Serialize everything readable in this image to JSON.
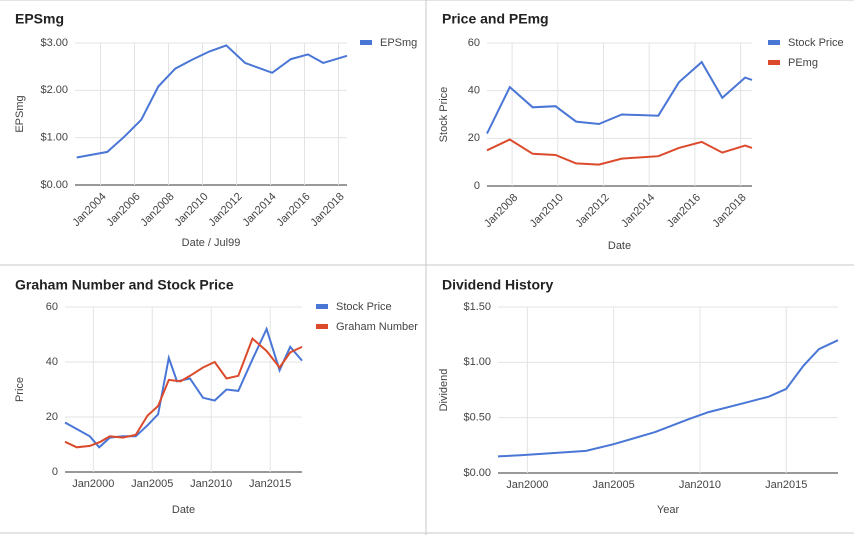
{
  "chart_data": [
    {
      "type": "line",
      "title": "EPSmg",
      "x_label": "Date / Jul99",
      "y_label": "EPSmg",
      "legend": "right",
      "grid": true,
      "xlim": [
        2002.5,
        2018.5
      ],
      "xticks": [
        {
          "value": 2004,
          "label": "Jan2004"
        },
        {
          "value": 2006,
          "label": "Jan2006"
        },
        {
          "value": 2008,
          "label": "Jan2008"
        },
        {
          "value": 2010,
          "label": "Jan2010"
        },
        {
          "value": 2012,
          "label": "Jan2012"
        },
        {
          "value": 2014,
          "label": "Jan2014"
        },
        {
          "value": 2016,
          "label": "Jan2016"
        },
        {
          "value": 2018,
          "label": "Jan2018"
        }
      ],
      "ylim": [
        0,
        3
      ],
      "yticks": [
        {
          "value": 0,
          "label": "$0.00"
        },
        {
          "value": 1,
          "label": "$1.00"
        },
        {
          "value": 2,
          "label": "$2.00"
        },
        {
          "value": 3,
          "label": "$3.00"
        }
      ],
      "series": [
        {
          "name": "EPSmg",
          "color": "#4a76d6",
          "x": [
            2002.6,
            2004.4,
            2005.4,
            2006.4,
            2007.4,
            2008.4,
            2009.4,
            2010.4,
            2011.4,
            2012.5,
            2014.1,
            2015.2,
            2016.2,
            2017.1,
            2018.5
          ],
          "values": [
            0.58,
            0.7,
            1.02,
            1.38,
            2.08,
            2.46,
            2.65,
            2.82,
            2.95,
            2.58,
            2.37,
            2.66,
            2.76,
            2.58,
            2.73
          ]
        }
      ]
    },
    {
      "type": "line",
      "title": "Price and PEmg",
      "x_label": "Date",
      "y_label": "Stock Price",
      "legend": "right",
      "grid": true,
      "xlim": [
        2006.9,
        2018.5
      ],
      "xticks": [
        {
          "value": 2008,
          "label": "Jan2008"
        },
        {
          "value": 2010,
          "label": "Jan2010"
        },
        {
          "value": 2012,
          "label": "Jan2012"
        },
        {
          "value": 2014,
          "label": "Jan2014"
        },
        {
          "value": 2016,
          "label": "Jan2016"
        },
        {
          "value": 2018,
          "label": "Jan2018"
        }
      ],
      "ylim": [
        0,
        60
      ],
      "yticks": [
        0,
        20,
        40,
        60
      ],
      "series": [
        {
          "name": "Stock Price",
          "color": "#4a76d6",
          "x": [
            2006.9,
            2007.9,
            2008.9,
            2009.9,
            2010.8,
            2011.8,
            2012.8,
            2014.4,
            2015.3,
            2016.3,
            2017.2,
            2018.2,
            2018.5
          ],
          "values": [
            22,
            41.5,
            33,
            33.5,
            27,
            26,
            30,
            29.5,
            43.5,
            52,
            37,
            45.5,
            44.5
          ]
        },
        {
          "name": "PEmg",
          "color": "#dc4a2c",
          "x": [
            2006.9,
            2007.9,
            2008.9,
            2009.9,
            2010.8,
            2011.8,
            2012.8,
            2014.4,
            2015.3,
            2016.3,
            2017.2,
            2018.2,
            2018.5
          ],
          "values": [
            15,
            19.5,
            13.5,
            13,
            9.5,
            9,
            11.5,
            12.5,
            16,
            18.5,
            14,
            17,
            16
          ]
        }
      ]
    },
    {
      "type": "line",
      "title": "Graham Number and Stock Price",
      "x_label": "Date",
      "y_label": "Price",
      "legend": "right",
      "grid": true,
      "xlim": [
        1997.6,
        2017.7
      ],
      "xticks": [
        {
          "value": 2000,
          "label": "Jan2000"
        },
        {
          "value": 2005,
          "label": "Jan2005"
        },
        {
          "value": 2010,
          "label": "Jan2010"
        },
        {
          "value": 2015,
          "label": "Jan2015"
        }
      ],
      "ylim": [
        0,
        60
      ],
      "yticks": [
        0,
        20,
        40,
        60
      ],
      "series": [
        {
          "name": "Stock Price",
          "color": "#4a76d6",
          "x": [
            1997.6,
            1999.7,
            2000.5,
            2001.4,
            2002.5,
            2003.6,
            2004.6,
            2005.5,
            2006.4,
            2007.1,
            2008.2,
            2009.3,
            2010.3,
            2011.3,
            2012.3,
            2013.5,
            2014.7,
            2015.8,
            2016.7,
            2017.7
          ],
          "values": [
            18,
            13,
            9,
            12.5,
            13,
            13,
            17,
            21,
            41.5,
            33,
            34,
            27,
            26,
            30,
            29.5,
            41,
            52,
            37,
            45.5,
            40.5
          ]
        },
        {
          "name": "Graham Number",
          "color": "#dc4a2c",
          "x": [
            1997.6,
            1998.6,
            1999.7,
            2000.6,
            2001.4,
            2002.5,
            2003.6,
            2004.6,
            2005.5,
            2006.4,
            2007.4,
            2008.2,
            2009.3,
            2010.3,
            2011.3,
            2012.3,
            2013.5,
            2014.7,
            2015.8,
            2016.7,
            2017.7
          ],
          "values": [
            11,
            9,
            9.5,
            11,
            13,
            12.5,
            13.5,
            20.5,
            24,
            33.5,
            33,
            35,
            38,
            40,
            34,
            35,
            48.5,
            44,
            38,
            43.5,
            45.5
          ]
        }
      ]
    },
    {
      "type": "line",
      "title": "Dividend History",
      "x_label": "Year",
      "y_label": "Dividend",
      "grid": true,
      "color": "#4a76d6",
      "xlim": [
        1998.3,
        2018.0
      ],
      "xticks": [
        {
          "value": 2000,
          "label": "Jan2000"
        },
        {
          "value": 2005,
          "label": "Jan2005"
        },
        {
          "value": 2010,
          "label": "Jan2010"
        },
        {
          "value": 2015,
          "label": "Jan2015"
        }
      ],
      "ylim": [
        0,
        1.5
      ],
      "yticks": [
        {
          "value": 0,
          "label": "$0.00"
        },
        {
          "value": 0.5,
          "label": "$0.50"
        },
        {
          "value": 1,
          "label": "$1.00"
        },
        {
          "value": 1.5,
          "label": "$1.50"
        }
      ],
      "x": [
        1998.3,
        1999.6,
        2003.4,
        2005.0,
        2007.4,
        2009.4,
        2010.5,
        2012.5,
        2014.0,
        2015.0,
        2016.0,
        2016.9,
        2018.0
      ],
      "values": [
        0.15,
        0.16,
        0.2,
        0.26,
        0.37,
        0.49,
        0.55,
        0.63,
        0.69,
        0.76,
        0.97,
        1.12,
        1.2
      ]
    }
  ]
}
